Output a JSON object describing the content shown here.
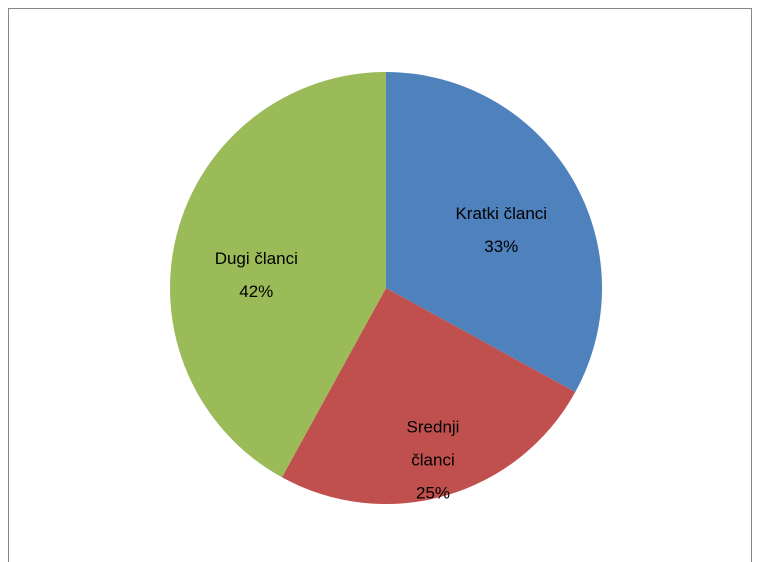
{
  "chart_data": {
    "type": "pie",
    "categories": [
      "Kratki članci",
      "Srednji članci",
      "Dugi članci"
    ],
    "values": [
      33,
      25,
      42
    ],
    "value_labels": [
      "33%",
      "25%",
      "42%"
    ],
    "colors": [
      "#4f81bd",
      "#c0504d",
      "#9bbb59"
    ]
  }
}
